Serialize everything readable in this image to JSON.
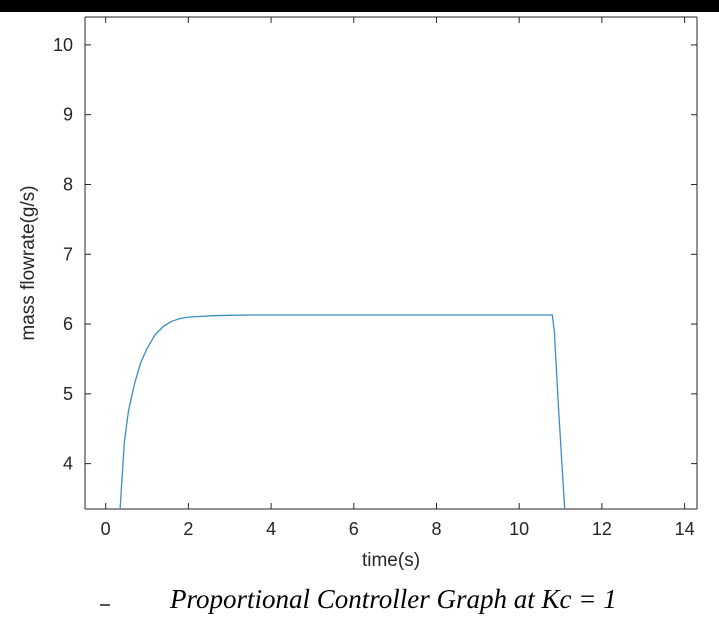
{
  "caption": "Proportional Controller Graph at Kc = 1",
  "colors": {
    "line": "#3b8cc8",
    "axis": "#262626",
    "topbar": "#000000"
  },
  "chart_data": {
    "type": "line",
    "title": "",
    "xlabel": "time(s)",
    "ylabel": "mass flowrate(g/s)",
    "xlim": [
      -0.5,
      14.3
    ],
    "ylim": [
      3.35,
      10.4
    ],
    "xticks": [
      0,
      2,
      4,
      6,
      8,
      10,
      12,
      14
    ],
    "yticks": [
      4,
      5,
      6,
      7,
      8,
      9,
      10
    ],
    "grid": false,
    "series": [
      {
        "x": [
          0.35,
          0.45,
          0.55,
          0.7,
          0.85,
          1.0,
          1.2,
          1.4,
          1.6,
          1.8,
          2.0,
          2.3,
          2.6,
          3.0,
          3.5,
          4.0,
          5.0,
          6.0,
          8.0,
          10.0,
          10.8,
          10.85,
          10.95,
          11.1
        ],
        "y": [
          3.35,
          4.3,
          4.75,
          5.15,
          5.45,
          5.65,
          5.85,
          5.97,
          6.04,
          6.08,
          6.1,
          6.11,
          6.12,
          6.125,
          6.13,
          6.13,
          6.13,
          6.13,
          6.13,
          6.13,
          6.13,
          5.9,
          4.8,
          3.35
        ]
      }
    ]
  }
}
